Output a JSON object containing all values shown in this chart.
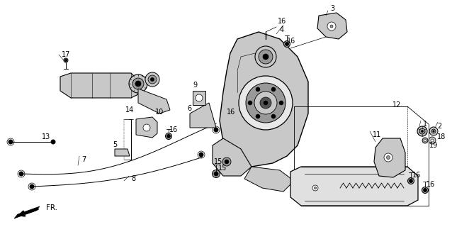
{
  "bg_color": "#ffffff",
  "line_color": "#000000",
  "gray_light": "#c8c8c8",
  "gray_mid": "#999999",
  "gray_dark": "#555555",
  "lw_main": 0.7,
  "lw_thin": 0.4,
  "fs_label": 7.5
}
